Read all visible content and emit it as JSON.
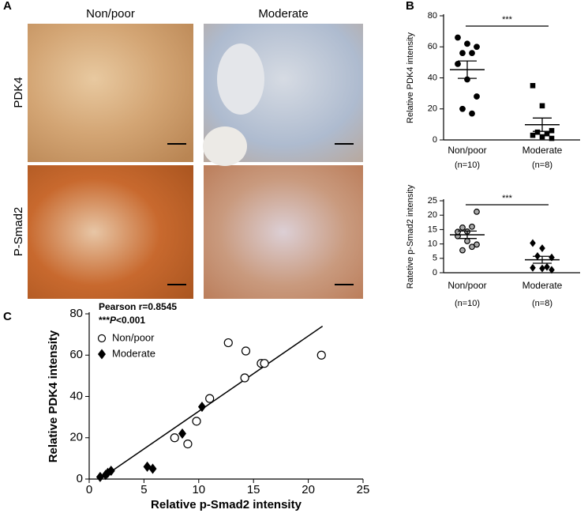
{
  "panels": {
    "a": "A",
    "b": "B",
    "c": "C"
  },
  "image_grid": {
    "columns": [
      "Non/poor",
      "Moderate"
    ],
    "rows": [
      "PDK4",
      "P-Smad2"
    ]
  },
  "chart_data": [
    {
      "type": "dot",
      "ylabel": "Relative PDK4 intensity",
      "ylim": [
        0,
        80
      ],
      "yticks": [
        0,
        20,
        40,
        60,
        80
      ],
      "significance": "***",
      "groups": [
        {
          "name": "Non/poor",
          "note": "(n=10)",
          "marker": "circle",
          "fill": "#000000",
          "values": [
            66,
            62,
            60,
            56,
            56,
            49,
            39,
            28,
            20,
            17
          ],
          "mean": 45.3,
          "sem": 5.6
        },
        {
          "name": "Moderate",
          "note": "(n=8)",
          "marker": "square",
          "fill": "#000000",
          "values": [
            35,
            22,
            6,
            5,
            4,
            3,
            2,
            1
          ],
          "mean": 9.8,
          "sem": 4.3
        }
      ]
    },
    {
      "type": "dot",
      "ylabel": "Ratetive p-Smad2 intensity",
      "ylim": [
        0,
        25
      ],
      "yticks": [
        0,
        5,
        10,
        15,
        20,
        25
      ],
      "significance": "***",
      "groups": [
        {
          "name": "Non/poor",
          "note": "(n=10)",
          "marker": "circle",
          "fill": "#aaaaaa",
          "values": [
            12.7,
            14.3,
            21.2,
            15.7,
            16.0,
            14.2,
            11.0,
            9.8,
            7.8,
            9.0
          ],
          "mean": 13.2,
          "sem": 1.3
        },
        {
          "name": "Moderate",
          "note": "(n=8)",
          "marker": "diamond",
          "fill": "#000000",
          "values": [
            10.3,
            8.5,
            5.3,
            5.8,
            2.0,
            1.7,
            1.5,
            1.0
          ],
          "mean": 4.5,
          "sem": 1.2
        }
      ]
    },
    {
      "type": "scatter",
      "xlabel": "Relative p-Smad2 intensity",
      "ylabel": "Relative PDK4 intensity",
      "annotation": "Pearson r=0.8545",
      "p_text": [
        "***",
        "P",
        "<0.001"
      ],
      "xlim": [
        0,
        25
      ],
      "xticks": [
        0,
        5,
        10,
        15,
        20,
        25
      ],
      "ylim": [
        0,
        80
      ],
      "yticks": [
        0,
        20,
        40,
        60,
        80
      ],
      "legend": "upper left",
      "series": [
        {
          "name": "Non/poor",
          "marker": "circle",
          "color": "#000000",
          "x": [
            12.7,
            14.3,
            21.2,
            15.7,
            16.0,
            14.2,
            11.0,
            9.8,
            7.8,
            9.0
          ],
          "y": [
            66,
            62,
            60,
            56,
            56,
            49,
            39,
            28,
            20,
            17
          ]
        },
        {
          "name": "Moderate",
          "marker": "diamond",
          "color": "#000000",
          "x": [
            10.3,
            8.5,
            5.3,
            5.8,
            2.0,
            1.7,
            1.5,
            1.0
          ],
          "y": [
            35,
            22,
            6,
            5,
            4,
            3,
            2,
            1
          ]
        }
      ],
      "fit_line": {
        "x": [
          1,
          21.3
        ],
        "y": [
          0,
          74
        ]
      }
    }
  ]
}
